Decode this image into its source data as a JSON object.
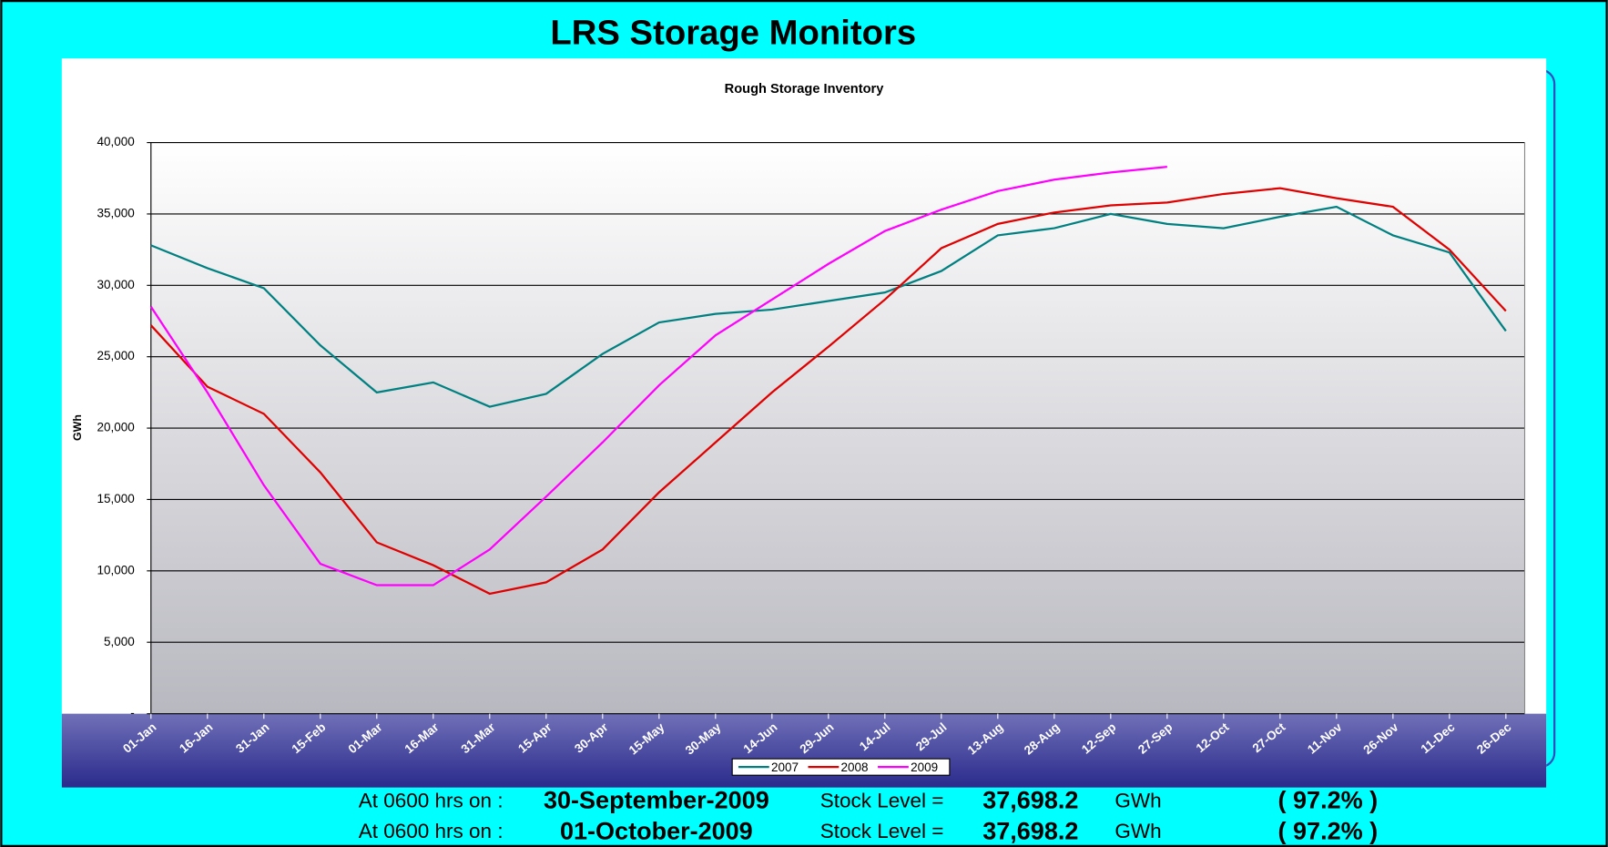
{
  "header": {
    "title": "LRS Storage Monitors"
  },
  "chart_data": {
    "type": "line",
    "title": "Rough Storage Inventory",
    "y_label": "GWh",
    "categories": [
      "01-Jan",
      "16-Jan",
      "31-Jan",
      "15-Feb",
      "01-Mar",
      "16-Mar",
      "31-Mar",
      "15-Apr",
      "30-Apr",
      "15-May",
      "30-May",
      "14-Jun",
      "29-Jun",
      "14-Jul",
      "29-Jul",
      "13-Aug",
      "28-Aug",
      "12-Sep",
      "27-Sep",
      "12-Oct",
      "27-Oct",
      "11-Nov",
      "26-Nov",
      "11-Dec",
      "26-Dec"
    ],
    "series": [
      {
        "name": "2007",
        "color": "#008080",
        "values": [
          32800,
          31200,
          29800,
          25800,
          22500,
          23200,
          21500,
          22400,
          25200,
          27400,
          28000,
          28300,
          28900,
          29500,
          31000,
          33500,
          34000,
          35000,
          34300,
          34000,
          34800,
          35500,
          33500,
          32300,
          26800
        ]
      },
      {
        "name": "2008",
        "color": "#e00000",
        "values": [
          27200,
          22900,
          21000,
          16900,
          12000,
          10400,
          8400,
          9200,
          11500,
          15500,
          19000,
          22500,
          25700,
          29000,
          32600,
          34300,
          35100,
          35600,
          35800,
          36400,
          36800,
          36100,
          35500,
          32500,
          28200
        ]
      },
      {
        "name": "2009",
        "color": "#ff00ff",
        "values": [
          28500,
          22500,
          16000,
          10500,
          9000,
          9000,
          11500,
          15200,
          19000,
          23000,
          26500,
          29000,
          31500,
          33800,
          35300,
          36600,
          37400,
          37900,
          38300,
          null,
          null,
          null,
          null,
          null,
          null
        ]
      }
    ],
    "ylim": [
      0,
      40000
    ],
    "yticks": [
      {
        "value": 0,
        "label": "-"
      },
      {
        "value": 5000,
        "label": "5,000"
      },
      {
        "value": 10000,
        "label": "10,000"
      },
      {
        "value": 15000,
        "label": "15,000"
      },
      {
        "value": 20000,
        "label": "20,000"
      },
      {
        "value": 25000,
        "label": "25,000"
      },
      {
        "value": 30000,
        "label": "30,000"
      },
      {
        "value": 35000,
        "label": "35,000"
      },
      {
        "value": 40000,
        "label": "40,000"
      }
    ],
    "grid": true,
    "legend": "bottom"
  },
  "footer": {
    "rows": [
      {
        "label": "At 0600 hrs on :",
        "date": "30-September-2009",
        "stock_label": "Stock Level =",
        "stock": "37,698.2",
        "unit": "GWh",
        "percent": "( 97.2% )"
      },
      {
        "label": "At 0600 hrs on :",
        "date": "01-October-2009",
        "stock_label": "Stock Level =",
        "stock": "37,698.2",
        "unit": "GWh",
        "percent": "( 97.2% )"
      }
    ]
  }
}
